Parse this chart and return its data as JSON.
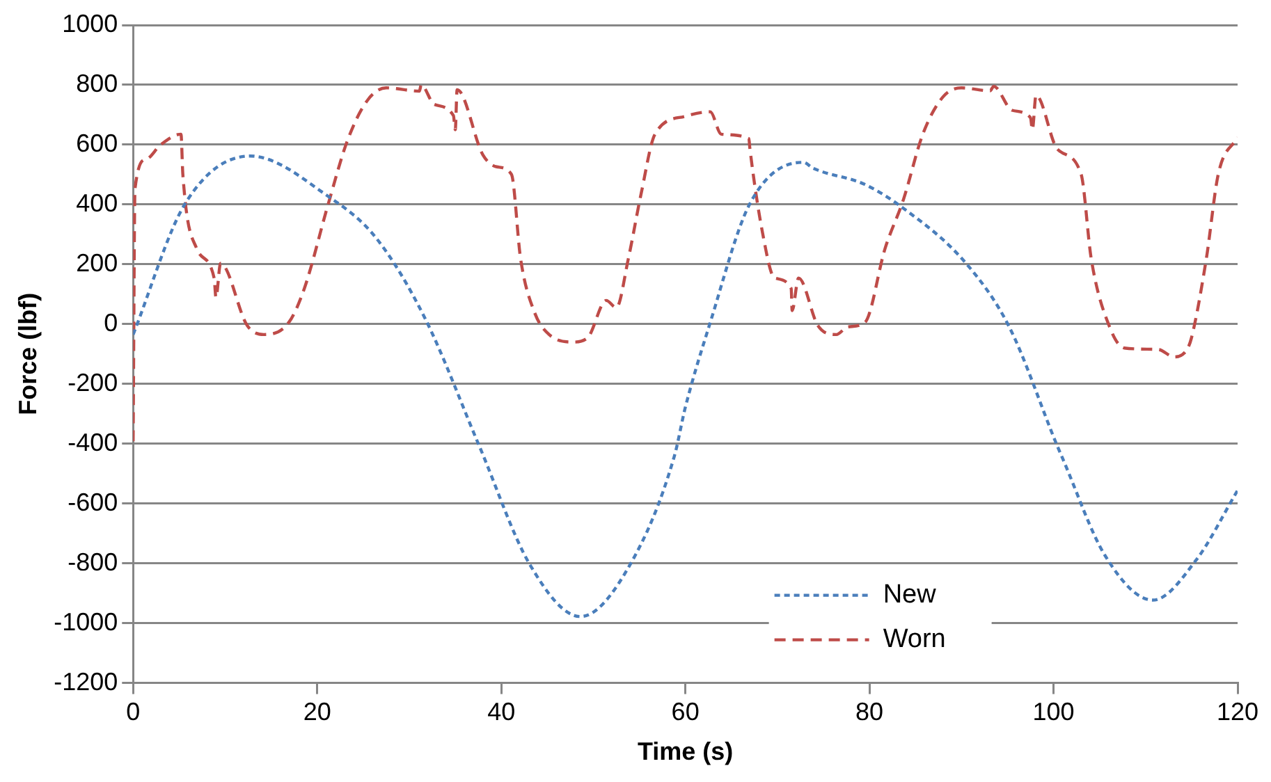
{
  "chart_data": {
    "type": "line",
    "xlabel": "Time (s)",
    "ylabel": "Force (lbf)",
    "xlim": [
      0,
      120
    ],
    "xticks": [
      0,
      20,
      40,
      60,
      80,
      100,
      120
    ],
    "ylim": [
      -1200,
      1000
    ],
    "yticks": [
      -1200,
      -1000,
      -800,
      -600,
      -400,
      -200,
      0,
      200,
      400,
      600,
      800,
      1000
    ],
    "grid": "y",
    "legend": "bottom",
    "marker": "none",
    "series": [
      {
        "name": "New",
        "color": "#4a7ebb",
        "line_style": "dotted",
        "x": [
          0,
          5.6,
          12.7,
          21.2,
          26.4,
          31.7,
          37.6,
          43.1,
          48.6,
          54,
          58.8,
          60,
          62.7,
          67,
          72.8,
          73.9,
          79.5,
          83.7,
          90.5,
          95.2,
          100.4,
          101,
          105.6,
          110.8,
          115.5,
          120
        ],
        "values": [
          -35,
          400,
          562,
          427,
          288,
          20,
          -407,
          -804,
          -978,
          -804,
          -442,
          -278,
          5,
          402,
          541,
          521,
          467,
          387,
          203,
          -10,
          -407,
          -450,
          -774,
          -923,
          -789,
          -556
        ]
      },
      {
        "name": "Worn",
        "color": "#be4b48",
        "line_style": "dashed",
        "x": [
          0,
          0.2,
          1.4,
          3,
          5.2,
          5.4,
          6.9,
          8.8,
          9,
          9.5,
          12.4,
          14.2,
          16.9,
          18.6,
          21.2,
          23.3,
          25.5,
          27.5,
          31.1,
          31.3,
          32.7,
          34.8,
          35,
          35.2,
          38,
          39.5,
          41.1,
          42.1,
          43.6,
          45.2,
          47.8,
          49.4,
          51.4,
          52.5,
          53.8,
          55.2,
          56.7,
          60,
          62.7,
          63.9,
          66.9,
          67,
          68.4,
          69.7,
          71.5,
          71.6,
          72.3,
          74.4,
          76.4,
          77.6,
          79.5,
          81.7,
          83.7,
          85.8,
          88,
          90,
          93.1,
          93.5,
          95.5,
          97.5,
          97.7,
          98.1,
          100.4,
          103,
          104.1,
          106.1,
          107.7,
          111.4,
          113.1,
          114.5,
          115,
          116.6,
          117.9,
          120
        ],
        "values": [
          -392,
          452,
          551,
          600,
          635,
          501,
          253,
          154,
          89,
          203,
          -5,
          -35,
          5,
          119,
          402,
          615,
          750,
          790,
          779,
          800,
          735,
          697,
          650,
          784,
          566,
          526,
          501,
          218,
          40,
          -35,
          -60,
          -45,
          79,
          55,
          218,
          437,
          635,
          695,
          710,
          635,
          620,
          590,
          303,
          154,
          119,
          45,
          154,
          -5,
          -35,
          -10,
          5,
          253,
          417,
          635,
          760,
          790,
          780,
          795,
          715,
          690,
          650,
          765,
          586,
          501,
          218,
          -10,
          -80,
          -85,
          -110,
          -85,
          -45,
          218,
          501,
          625
        ]
      }
    ]
  }
}
